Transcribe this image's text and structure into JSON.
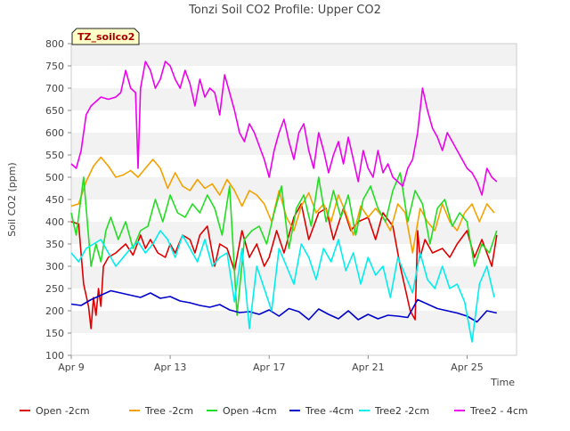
{
  "chart_data": {
    "type": "line",
    "title": "Tonzi Soil CO2 Profile: Upper CO2",
    "xlabel": "Time",
    "ylabel": "Soil CO2 (ppm)",
    "badge": "TZ_soilco2",
    "ylim": [
      100,
      800
    ],
    "yticks": [
      100,
      150,
      200,
      250,
      300,
      350,
      400,
      450,
      500,
      550,
      600,
      650,
      700,
      750,
      800
    ],
    "xlim": [
      0,
      18
    ],
    "xticks": [
      {
        "value": 0,
        "label": "Apr 9"
      },
      {
        "value": 4,
        "label": "Apr 13"
      },
      {
        "value": 8,
        "label": "Apr 17"
      },
      {
        "value": 12,
        "label": "Apr 21"
      },
      {
        "value": 16,
        "label": "Apr 25"
      }
    ],
    "x_units": "days since Apr 9",
    "grid": "horizontal-bands",
    "legend_position": "bottom",
    "series": [
      {
        "name": "Open -2cm",
        "color": "#dd0000",
        "x": [
          0.0,
          0.3,
          0.5,
          0.7,
          0.8,
          0.9,
          1.0,
          1.1,
          1.2,
          1.3,
          1.5,
          1.8,
          2.0,
          2.2,
          2.5,
          2.8,
          3.0,
          3.2,
          3.5,
          3.8,
          4.0,
          4.2,
          4.5,
          4.8,
          5.0,
          5.2,
          5.5,
          5.8,
          6.0,
          6.3,
          6.6,
          6.9,
          7.2,
          7.5,
          7.8,
          8.0,
          8.3,
          8.6,
          9.0,
          9.3,
          9.6,
          10.0,
          10.3,
          10.6,
          11.0,
          11.3,
          11.6,
          12.0,
          12.3,
          12.6,
          13.0,
          13.3,
          13.7,
          13.9,
          14.0,
          14.1,
          14.3,
          14.6,
          15.0,
          15.3,
          15.6,
          16.0,
          16.3,
          16.6,
          17.0,
          17.2
        ],
        "y": [
          400,
          395,
          260,
          210,
          160,
          230,
          190,
          250,
          210,
          300,
          320,
          330,
          340,
          350,
          325,
          370,
          340,
          360,
          330,
          320,
          350,
          330,
          370,
          360,
          330,
          370,
          390,
          300,
          350,
          340,
          290,
          380,
          320,
          350,
          300,
          320,
          380,
          330,
          410,
          440,
          360,
          420,
          430,
          360,
          430,
          380,
          400,
          410,
          360,
          420,
          390,
          300,
          200,
          180,
          380,
          320,
          360,
          330,
          340,
          320,
          350,
          380,
          320,
          360,
          300,
          370
        ]
      },
      {
        "name": "Tree -2cm",
        "color": "#f4a100",
        "x": [
          0.0,
          0.3,
          0.6,
          0.9,
          1.2,
          1.5,
          1.8,
          2.1,
          2.4,
          2.7,
          3.0,
          3.3,
          3.6,
          3.9,
          4.2,
          4.5,
          4.8,
          5.1,
          5.4,
          5.7,
          6.0,
          6.3,
          6.6,
          6.9,
          7.2,
          7.5,
          7.8,
          8.1,
          8.4,
          8.7,
          9.0,
          9.3,
          9.6,
          9.9,
          10.2,
          10.5,
          10.8,
          11.1,
          11.4,
          11.7,
          12.0,
          12.3,
          12.6,
          12.9,
          13.2,
          13.5,
          13.8,
          14.1,
          14.4,
          14.7,
          15.0,
          15.3,
          15.6,
          15.9,
          16.2,
          16.5,
          16.8,
          17.1
        ],
        "y": [
          435,
          440,
          490,
          525,
          545,
          525,
          500,
          505,
          515,
          500,
          520,
          540,
          520,
          475,
          510,
          480,
          470,
          495,
          475,
          485,
          460,
          495,
          470,
          435,
          470,
          460,
          440,
          400,
          470,
          410,
          380,
          435,
          465,
          420,
          440,
          400,
          460,
          420,
          370,
          435,
          410,
          430,
          410,
          380,
          440,
          420,
          330,
          430,
          400,
          380,
          440,
          400,
          380,
          420,
          440,
          400,
          440,
          420
        ]
      },
      {
        "name": "Open -4cm",
        "color": "#22dd22",
        "x": [
          0.0,
          0.2,
          0.5,
          0.8,
          1.0,
          1.2,
          1.4,
          1.6,
          1.9,
          2.2,
          2.5,
          2.8,
          3.1,
          3.4,
          3.7,
          4.0,
          4.3,
          4.6,
          4.9,
          5.2,
          5.5,
          5.8,
          6.1,
          6.4,
          6.7,
          7.0,
          7.3,
          7.6,
          7.9,
          8.2,
          8.5,
          8.8,
          9.1,
          9.4,
          9.7,
          10.0,
          10.3,
          10.6,
          10.9,
          11.2,
          11.5,
          11.8,
          12.1,
          12.4,
          12.7,
          13.0,
          13.3,
          13.6,
          13.9,
          14.2,
          14.5,
          14.8,
          15.1,
          15.4,
          15.7,
          16.0,
          16.3,
          16.6,
          16.9,
          17.2
        ],
        "y": [
          420,
          370,
          500,
          300,
          350,
          310,
          380,
          410,
          360,
          400,
          340,
          380,
          390,
          450,
          400,
          460,
          420,
          410,
          440,
          420,
          460,
          430,
          370,
          480,
          190,
          360,
          380,
          390,
          350,
          420,
          480,
          340,
          430,
          460,
          390,
          500,
          400,
          470,
          410,
          460,
          370,
          450,
          480,
          430,
          400,
          470,
          510,
          400,
          470,
          440,
          350,
          430,
          450,
          390,
          420,
          400,
          300,
          350,
          330,
          380
        ]
      },
      {
        "name": "Tree -4cm",
        "color": "#0000cc",
        "x": [
          0.0,
          0.4,
          0.8,
          1.2,
          1.6,
          2.0,
          2.4,
          2.8,
          3.2,
          3.6,
          4.0,
          4.4,
          4.8,
          5.2,
          5.6,
          6.0,
          6.4,
          6.8,
          7.2,
          7.6,
          8.0,
          8.4,
          8.8,
          9.2,
          9.6,
          10.0,
          10.4,
          10.8,
          11.2,
          11.6,
          12.0,
          12.4,
          12.8,
          13.2,
          13.6,
          14.0,
          14.4,
          14.8,
          15.2,
          15.6,
          16.0,
          16.4,
          16.8,
          17.2
        ],
        "y": [
          215,
          212,
          225,
          235,
          245,
          240,
          235,
          230,
          240,
          228,
          232,
          222,
          218,
          212,
          208,
          214,
          202,
          196,
          198,
          192,
          202,
          188,
          205,
          198,
          180,
          204,
          192,
          182,
          200,
          180,
          192,
          182,
          190,
          188,
          185,
          225,
          215,
          205,
          200,
          195,
          188,
          175,
          200,
          195
        ]
      },
      {
        "name": "Tree2 -2cm",
        "color": "#00eeee",
        "x": [
          0.0,
          0.3,
          0.6,
          0.9,
          1.2,
          1.5,
          1.8,
          2.1,
          2.4,
          2.7,
          3.0,
          3.3,
          3.6,
          3.9,
          4.2,
          4.5,
          4.8,
          5.1,
          5.4,
          5.7,
          6.0,
          6.3,
          6.6,
          6.9,
          7.2,
          7.5,
          7.8,
          8.1,
          8.4,
          8.7,
          9.0,
          9.3,
          9.6,
          9.9,
          10.2,
          10.5,
          10.8,
          11.1,
          11.4,
          11.7,
          12.0,
          12.3,
          12.6,
          12.9,
          13.2,
          13.5,
          13.8,
          14.1,
          14.4,
          14.7,
          15.0,
          15.3,
          15.6,
          15.9,
          16.2,
          16.5,
          16.8,
          17.1
        ],
        "y": [
          330,
          310,
          340,
          350,
          360,
          330,
          300,
          320,
          340,
          355,
          330,
          350,
          380,
          360,
          320,
          370,
          340,
          310,
          360,
          300,
          320,
          330,
          220,
          340,
          160,
          300,
          250,
          200,
          340,
          300,
          260,
          350,
          320,
          270,
          340,
          310,
          360,
          290,
          330,
          260,
          320,
          280,
          300,
          230,
          320,
          280,
          240,
          330,
          270,
          250,
          300,
          250,
          260,
          220,
          130,
          260,
          300,
          230
        ]
      },
      {
        "name": "Tree2 - 4cm",
        "color": "#ee00ee",
        "x": [
          0.0,
          0.2,
          0.4,
          0.6,
          0.8,
          1.0,
          1.2,
          1.5,
          1.8,
          2.0,
          2.2,
          2.4,
          2.6,
          2.7,
          2.8,
          3.0,
          3.2,
          3.4,
          3.6,
          3.8,
          4.0,
          4.2,
          4.4,
          4.6,
          4.8,
          5.0,
          5.2,
          5.4,
          5.6,
          5.8,
          6.0,
          6.2,
          6.4,
          6.6,
          6.8,
          7.0,
          7.2,
          7.4,
          7.6,
          7.8,
          8.0,
          8.2,
          8.4,
          8.6,
          8.8,
          9.0,
          9.2,
          9.4,
          9.6,
          9.8,
          10.0,
          10.2,
          10.4,
          10.6,
          10.8,
          11.0,
          11.2,
          11.4,
          11.6,
          11.8,
          12.0,
          12.2,
          12.4,
          12.6,
          12.8,
          13.0,
          13.2,
          13.4,
          13.6,
          13.8,
          14.0,
          14.2,
          14.4,
          14.6,
          14.8,
          15.0,
          15.2,
          15.4,
          15.6,
          15.8,
          16.0,
          16.2,
          16.4,
          16.6,
          16.8,
          17.0,
          17.2
        ],
        "y": [
          530,
          520,
          560,
          640,
          660,
          670,
          680,
          675,
          680,
          690,
          740,
          700,
          690,
          520,
          700,
          760,
          740,
          700,
          720,
          760,
          750,
          720,
          700,
          740,
          710,
          660,
          720,
          680,
          700,
          690,
          640,
          730,
          690,
          650,
          600,
          580,
          620,
          600,
          570,
          540,
          500,
          560,
          600,
          630,
          580,
          540,
          600,
          620,
          560,
          520,
          600,
          560,
          510,
          550,
          580,
          530,
          590,
          540,
          490,
          560,
          520,
          500,
          560,
          510,
          530,
          500,
          490,
          480,
          520,
          540,
          600,
          700,
          650,
          610,
          590,
          560,
          600,
          580,
          560,
          540,
          520,
          510,
          490,
          460,
          520,
          500,
          490
        ]
      }
    ]
  }
}
